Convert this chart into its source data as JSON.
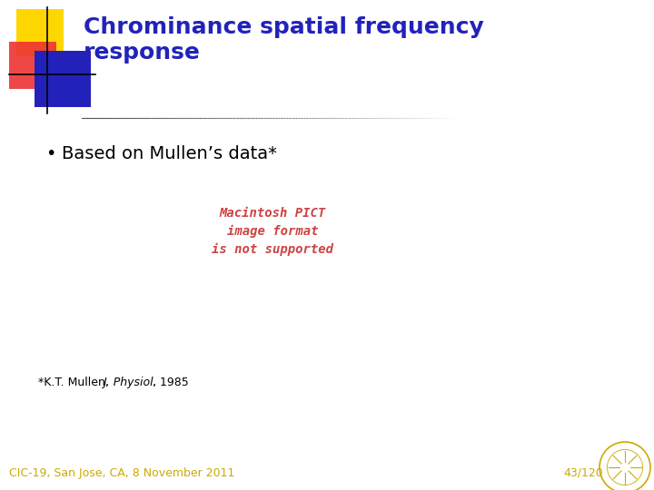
{
  "title_line1": "Chrominance spatial frequency",
  "title_line2": "response",
  "title_color": "#2222BB",
  "title_fontsize": 18,
  "bullet_text": "Based on Mullen’s data*",
  "bullet_fontsize": 14,
  "pict_text_line1": "Macintosh PICT",
  "pict_text_line2": "image format",
  "pict_text_line3": "is not supported",
  "pict_color": "#CC4444",
  "pict_fontsize": 10,
  "footnote_normal": "*K.T. Mullen, ",
  "footnote_italic": "J. Physiol.",
  "footnote_end": ", 1985",
  "footnote_fontsize": 9,
  "footer_left": "CIC-19, San Jose, CA, 8 November 2011",
  "footer_right": "43/120",
  "footer_color": "#CCAA00",
  "footer_fontsize": 9,
  "bg_color": "#FFFFFF"
}
